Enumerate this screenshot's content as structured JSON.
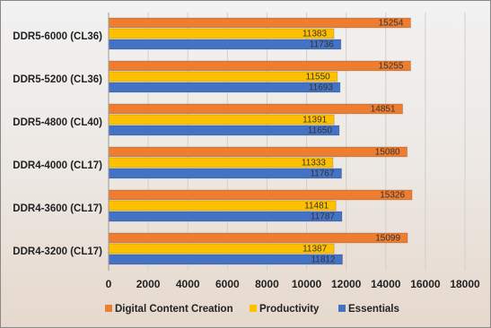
{
  "chart_data": {
    "type": "bar",
    "orientation": "horizontal",
    "categories": [
      "DDR5-6000 (CL36)",
      "DDR5-5200 (CL36)",
      "DDR5-4800 (CL40)",
      "DDR4-4000 (CL17)",
      "DDR4-3600 (CL17)",
      "DDR4-3200 (CL17)"
    ],
    "series": [
      {
        "name": "Digital Content Creation",
        "color": "#ed7d31",
        "values": [
          15254,
          15255,
          14851,
          15080,
          15326,
          15099
        ]
      },
      {
        "name": "Productivity",
        "color": "#ffc000",
        "values": [
          11383,
          11550,
          11391,
          11333,
          11481,
          11387
        ]
      },
      {
        "name": "Essentials",
        "color": "#4472c4",
        "values": [
          11736,
          11693,
          11650,
          11767,
          11787,
          11812
        ]
      }
    ],
    "xlim": [
      0,
      18000
    ],
    "xticks": [
      0,
      2000,
      4000,
      6000,
      8000,
      10000,
      12000,
      14000,
      16000,
      18000
    ],
    "grid": true,
    "legend": "bottom"
  }
}
